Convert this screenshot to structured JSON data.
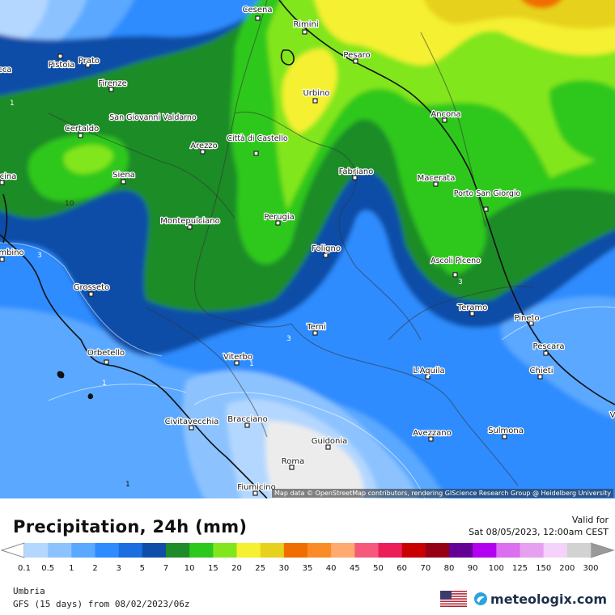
{
  "map": {
    "cities": [
      {
        "name": "Cesena"
      },
      {
        "name": "Rimini"
      },
      {
        "name": "Pistoia"
      },
      {
        "name": "Prato"
      },
      {
        "name": "Pesaro"
      },
      {
        "name": "Firenze"
      },
      {
        "name": "Urbino"
      },
      {
        "name": "Ancona"
      },
      {
        "name": "San Giovanni Valdarno"
      },
      {
        "name": "Certaldo"
      },
      {
        "name": "Arezzo"
      },
      {
        "name": "Città di Castello"
      },
      {
        "name": "Siena"
      },
      {
        "name": "Fabriano"
      },
      {
        "name": "Macerata"
      },
      {
        "name": "Porto San Giorgio"
      },
      {
        "name": "Montepulciano"
      },
      {
        "name": "Perugia"
      },
      {
        "name": "Foligno"
      },
      {
        "name": "Ascoli Piceno"
      },
      {
        "name": "Grosseto"
      },
      {
        "name": "Teramo"
      },
      {
        "name": "Pineto"
      },
      {
        "name": "Terni"
      },
      {
        "name": "Orbetello"
      },
      {
        "name": "Pescara"
      },
      {
        "name": "Viterbo"
      },
      {
        "name": "L'Aquila"
      },
      {
        "name": "Chieti"
      },
      {
        "name": "Civitavecchia"
      },
      {
        "name": "Bracciano"
      },
      {
        "name": "Avezzano"
      },
      {
        "name": "Sulmona"
      },
      {
        "name": "Guidonia"
      },
      {
        "name": "Roma"
      },
      {
        "name": "Fiumicino"
      },
      {
        "name": "cca"
      },
      {
        "name": "cina"
      },
      {
        "name": "mbino"
      },
      {
        "name": "V"
      }
    ],
    "contour_labels": [
      "1",
      "3",
      "10",
      "1",
      "3",
      "3",
      "1",
      "1"
    ],
    "attribution": "Map data © OpenStreetMap contributors, rendering GIScience Research Group @ Heidelberg University"
  },
  "header": {
    "title": "Precipitation, 24h (mm)",
    "valid_label": "Valid for",
    "valid_date": "Sat 08/05/2023, 12:00am CEST"
  },
  "legend": {
    "colors": [
      "#b4d7ff",
      "#8cc3ff",
      "#5aa8ff",
      "#2d8cff",
      "#1a6ee0",
      "#0f4ea8",
      "#1e8c28",
      "#2dc81e",
      "#82e61e",
      "#f5f032",
      "#e6d21e",
      "#f06e00",
      "#fa8c28",
      "#ffaa6e",
      "#f55a7d",
      "#eb1e5a",
      "#c80000",
      "#960014",
      "#640096",
      "#b400f0",
      "#dc6ef0",
      "#e6a0f0",
      "#f5d2fa",
      "#d2d2d2"
    ],
    "labels": [
      "0.1",
      "0.5",
      "1",
      "2",
      "3",
      "5",
      "7",
      "10",
      "15",
      "20",
      "25",
      "30",
      "35",
      "40",
      "45",
      "50",
      "60",
      "70",
      "80",
      "90",
      "100",
      "125",
      "150",
      "200",
      "300"
    ]
  },
  "footer": {
    "region": "Umbria",
    "model": "GFS (15 days) from 08/02/2023/06z",
    "brand": "meteologix.com",
    "flag_icon": "us-flag-icon",
    "logo_icon": "meteologix-logo-icon"
  }
}
